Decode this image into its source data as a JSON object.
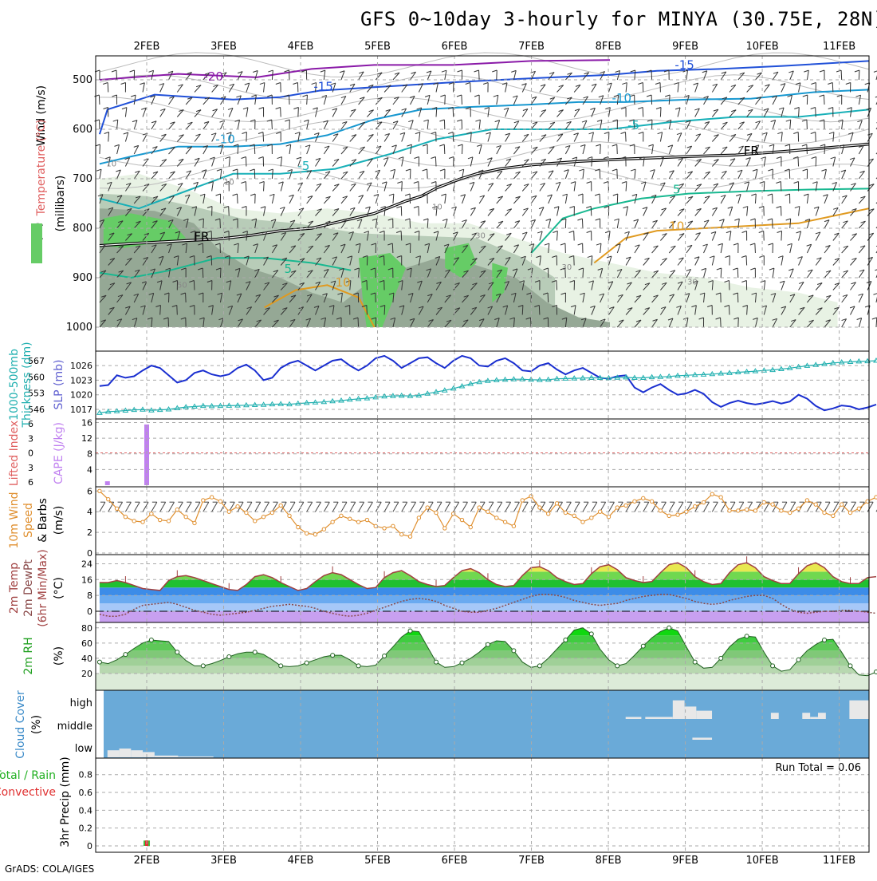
{
  "title": "GFS 0~10day 3-hourly for MINYA (30.75E, 28N)",
  "credit": "GrADS: COLA/IGES",
  "run_total_label": "Run Total = 0.06",
  "colors": {
    "grid": "#aaaaaa",
    "rh_green": "#66cc66",
    "rh_light": "#e8f2e4",
    "rh_mid": "#b8ccb8",
    "rh_dark": "#95a895",
    "slp": "#1a2fd0",
    "thickness": "#22b0b0",
    "cape": "#c080f0",
    "li": "#e06060",
    "wind": "#e09030",
    "temp_line": "#a04040",
    "dewpt": "#8a4a4a",
    "cloud": "#6aaad8",
    "precip_green": "#40c040",
    "precip_red": "#e03030"
  },
  "chart_data": [
    {
      "type": "contour",
      "panel": "upper-air",
      "ylabel": [
        "Wind (m/s)",
        "Temperature (°C)",
        "RH (%)",
        "(millibars)"
      ],
      "x_ticks": [
        "2FEB",
        "3FEB",
        "4FEB",
        "5FEB",
        "6FEB",
        "7FEB",
        "8FEB",
        "9FEB",
        "10FEB",
        "11FEB"
      ],
      "y_ticks": [
        500,
        600,
        700,
        800,
        900,
        1000
      ],
      "contour_labels": [
        {
          "text": "-20",
          "day": 2.95,
          "p": 502
        },
        {
          "text": "-15",
          "day": 4.35,
          "p": 522
        },
        {
          "text": "-15",
          "day": 8.95,
          "p": 478
        },
        {
          "text": "-10",
          "day": 3.1,
          "p": 628
        },
        {
          "text": "-10",
          "day": 8.15,
          "p": 545
        },
        {
          "text": "-5",
          "day": 4.1,
          "p": 682
        },
        {
          "text": "-5",
          "day": 8.3,
          "p": 600
        },
        {
          "text": "5",
          "day": 8.85,
          "p": 730
        },
        {
          "text": "10",
          "day": 8.85,
          "p": 804
        },
        {
          "text": "10",
          "day": 4.6,
          "p": 918
        },
        {
          "text": "5",
          "day": 3.9,
          "p": 890
        },
        {
          "text": "FR",
          "day": 2.8,
          "p": 825
        },
        {
          "text": "FR",
          "day": 9.8,
          "p": 652
        },
        {
          "text": "10",
          "day": 1.65,
          "p": 675
        },
        {
          "text": "10",
          "day": 3.15,
          "p": 712
        },
        {
          "text": "10",
          "day": 5.8,
          "p": 762
        },
        {
          "text": "30",
          "day": 6.35,
          "p": 820
        },
        {
          "text": "30",
          "day": 7.45,
          "p": 884
        },
        {
          "text": "30",
          "day": 9.05,
          "p": 914
        },
        {
          "text": "50",
          "day": 2.55,
          "p": 920
        }
      ]
    },
    {
      "type": "line",
      "panel": "slp-thickness",
      "ylabel": [
        "1000-500mb",
        "Thickness (dm)",
        "SLP (mb)"
      ],
      "y_ticks_thickness": [
        546,
        553,
        560,
        567
      ],
      "y_ticks_slp": [
        1017,
        1020,
        1023,
        1026
      ],
      "series": [
        {
          "name": "SLP (mb)",
          "values": [
            1021.8,
            1022,
            1024,
            1023.5,
            1023.8,
            1025,
            1026,
            1025.5,
            1024,
            1022.5,
            1023,
            1024.5,
            1025,
            1024.2,
            1023.8,
            1024.2,
            1025.5,
            1026.2,
            1025,
            1023,
            1023.5,
            1025.5,
            1026.5,
            1027,
            1026,
            1025,
            1026,
            1027,
            1027.3,
            1026,
            1025,
            1026,
            1027.5,
            1028,
            1027,
            1025.5,
            1026.5,
            1027.5,
            1027.7,
            1026.5,
            1025.5,
            1027,
            1028,
            1027.5,
            1026,
            1025.8,
            1027,
            1027.5,
            1026.5,
            1025,
            1024.8,
            1026,
            1026.5,
            1025.2,
            1024.2,
            1025,
            1025.5,
            1024.5,
            1023.5,
            1023.3,
            1023.8,
            1024,
            1021.5,
            1020.5,
            1021.5,
            1022.2,
            1021,
            1020,
            1020.3,
            1021,
            1020.2,
            1018.5,
            1017.5,
            1018.3,
            1018.8,
            1018.3,
            1018,
            1018.3,
            1018.7,
            1018.2,
            1018.6,
            1020,
            1019.2,
            1017.7,
            1016.8,
            1017.2,
            1017.8,
            1017.6,
            1017,
            1017.4,
            1018
          ]
        },
        {
          "name": "1000-500mb Thickness (dm)",
          "values": [
            544.5,
            545,
            545.2,
            545.5,
            545.8,
            545.9,
            545.6,
            545.8,
            546,
            546.5,
            547,
            547.2,
            547.5,
            547.4,
            547.5,
            547.6,
            547.7,
            547.8,
            547.9,
            548,
            548.2,
            548.3,
            548.2,
            548.5,
            548.8,
            549,
            549.2,
            549.5,
            549.8,
            550.2,
            550.5,
            550.8,
            551.2,
            551.6,
            551.8,
            551.9,
            551.8,
            552,
            552.8,
            553.5,
            554.2,
            555,
            556,
            557,
            557.8,
            558.3,
            558.6,
            558.8,
            559,
            559,
            558.8,
            558.7,
            558.8,
            559.2,
            559.3,
            559.4,
            559.5,
            559.6,
            559.6,
            559.5,
            559.7,
            559.8,
            559.6,
            559.6,
            559.9,
            560,
            560.2,
            560.5,
            560.7,
            560.9,
            561,
            561.2,
            561.5,
            561.7,
            562,
            562.2,
            562.5,
            562.8,
            563,
            563.4,
            563.8,
            564.3,
            564.8,
            565.2,
            565.6,
            566,
            566.3,
            566.5,
            566.7,
            566.8,
            567
          ]
        }
      ]
    },
    {
      "type": "bar",
      "panel": "cape-li",
      "ylabel": [
        "Lifted Index",
        "CAPE (J/kg)"
      ],
      "y_ticks_li": [
        -6,
        -3,
        0,
        3,
        6
      ],
      "y_ticks_cape": [
        4,
        8,
        12,
        16
      ],
      "bars": [
        {
          "day": 1.6,
          "value": 1
        },
        {
          "day": 2.1,
          "value": 15.5
        }
      ]
    },
    {
      "type": "line",
      "panel": "wind10m",
      "ylabel": [
        "10m Wind",
        "Speed",
        "& Barbs",
        "(m/s)"
      ],
      "y_ticks": [
        0,
        2,
        4,
        6
      ],
      "series": [
        {
          "name": "Speed",
          "values": [
            6,
            5.2,
            4.3,
            3.5,
            3.1,
            3.0,
            3.8,
            3.2,
            3.1,
            4.2,
            3.5,
            2.9,
            5.1,
            5.4,
            5.0,
            4.0,
            4.5,
            3.9,
            3.1,
            3.5,
            3.9,
            4.6,
            3.6,
            2.5,
            1.9,
            1.8,
            2.3,
            3.0,
            3.6,
            3.3,
            3.0,
            3.2,
            2.6,
            2.4,
            2.6,
            1.8,
            1.6,
            3.4,
            4.4,
            3.9,
            2.4,
            3.8,
            3.2,
            2.5,
            4.4,
            4.0,
            3.4,
            3.0,
            2.6,
            5.1,
            5.5,
            4.4,
            3.8,
            4.8,
            3.9,
            3.6,
            3.0,
            3.4,
            4.0,
            3.5,
            4.4,
            4.6,
            5.0,
            5.3,
            5.0,
            4.1,
            3.6,
            3.7,
            4.0,
            4.5,
            4.9,
            5.7,
            5.4,
            4.1,
            4.1,
            4.2,
            4.1,
            4.9,
            4.7,
            4.1,
            3.9,
            4.3,
            5.1,
            4.7,
            3.9,
            3.6,
            4.7,
            3.9,
            4.3,
            5.0,
            5.4
          ]
        }
      ]
    },
    {
      "type": "area",
      "panel": "temp",
      "ylabel": [
        "2m Temp",
        "2m DewPt",
        "(6hr Min/Max)",
        "(°C)"
      ],
      "y_ticks": [
        0,
        8,
        16,
        24
      ],
      "series": [
        {
          "name": "2m Temp",
          "values": [
            14.5,
            14.5,
            15.5,
            14.5,
            13.0,
            11.5,
            11.0,
            10.5,
            15.5,
            17.5,
            18.0,
            17.0,
            15.5,
            14.0,
            12.5,
            11.0,
            10.5,
            13.5,
            17.5,
            18.5,
            17.0,
            14.5,
            12.5,
            10.5,
            11.5,
            15.0,
            18.0,
            19.5,
            18.5,
            16.0,
            13.5,
            11.5,
            12.0,
            17.0,
            19.5,
            20.5,
            18.0,
            15.0,
            13.5,
            12.5,
            13.0,
            17.0,
            20.5,
            21.5,
            19.5,
            16.0,
            13.5,
            12.5,
            13.0,
            18.0,
            22.0,
            22.5,
            20.5,
            17.0,
            15.0,
            13.5,
            14.0,
            19.0,
            22.5,
            23.5,
            21.0,
            17.0,
            15.5,
            14.5,
            15.0,
            19.5,
            23.5,
            24.5,
            22.0,
            17.5,
            15.0,
            13.5,
            14.0,
            19.5,
            23.5,
            24.5,
            22.0,
            17.5,
            15.5,
            14.0,
            14.0,
            19.0,
            23.0,
            24.5,
            22.0,
            17.5,
            15.0,
            14.0,
            14.0,
            17.0,
            17.5
          ]
        },
        {
          "name": "2m DewPt",
          "values": [
            -1.5,
            -2.5,
            -2.5,
            -1.5,
            1.0,
            3.0,
            3.5,
            4.0,
            4.5,
            3.5,
            2.0,
            0.5,
            -0.5,
            -1.5,
            -2.0,
            -1.5,
            -1.0,
            -0.5,
            0.5,
            1.5,
            2.5,
            3.0,
            3.5,
            3.0,
            2.5,
            1.5,
            0.0,
            -1.0,
            -2.0,
            -2.5,
            -2.0,
            -1.0,
            0.5,
            2.0,
            3.5,
            5.0,
            6.0,
            6.5,
            6.0,
            5.0,
            3.0,
            1.5,
            0.0,
            -0.5,
            -0.5,
            0.5,
            1.5,
            3.0,
            4.5,
            6.0,
            7.5,
            8.5,
            8.5,
            8.0,
            7.0,
            5.5,
            4.5,
            3.5,
            3.0,
            3.5,
            4.0,
            5.5,
            6.5,
            7.5,
            8.0,
            8.5,
            8.5,
            7.5,
            6.5,
            5.0,
            4.0,
            3.5,
            4.0,
            5.5,
            6.5,
            7.5,
            8.0,
            8.0,
            6.5,
            3.5,
            1.0,
            -0.5,
            -1.0,
            -0.5,
            0.0,
            0.0,
            0.5,
            0.5,
            0.0,
            -0.5,
            -1.0
          ]
        }
      ]
    },
    {
      "type": "area",
      "panel": "rh2m",
      "ylabel": [
        "2m RH",
        "(%)"
      ],
      "y_ticks": [
        20,
        40,
        60,
        80
      ],
      "series": [
        {
          "name": "2m RH",
          "values": [
            35,
            33,
            38,
            45,
            53,
            60,
            64,
            63,
            62,
            48,
            37,
            30,
            30,
            33,
            37,
            42,
            46,
            48,
            48,
            45,
            38,
            30,
            29,
            30,
            34,
            38,
            42,
            44,
            44,
            38,
            30,
            29,
            31,
            43,
            55,
            68,
            76,
            75,
            55,
            35,
            28,
            29,
            34,
            40,
            48,
            58,
            63,
            62,
            50,
            35,
            28,
            30,
            40,
            52,
            64,
            77,
            80,
            72,
            52,
            38,
            30,
            33,
            44,
            56,
            67,
            75,
            80,
            76,
            55,
            35,
            27,
            28,
            40,
            55,
            65,
            69,
            68,
            48,
            30,
            23,
            25,
            38,
            50,
            58,
            64,
            65,
            48,
            30,
            18,
            17,
            22,
            30,
            35,
            36,
            36
          ]
        }
      ]
    },
    {
      "type": "heatmap",
      "panel": "cloud",
      "ylabel": [
        "Cloud Cover",
        "(%)"
      ],
      "y_ticks": [
        "high",
        "middle",
        "low"
      ],
      "low_clouds": [
        {
          "from": 1.6,
          "to": 1.75,
          "value": 40
        },
        {
          "from": 1.75,
          "to": 1.9,
          "value": 50
        },
        {
          "from": 1.9,
          "to": 2.05,
          "value": 40
        },
        {
          "from": 2.05,
          "to": 2.2,
          "value": 30
        },
        {
          "from": 2.2,
          "to": 2.5,
          "value": 10
        },
        {
          "from": 2.5,
          "to": 2.95,
          "value": 5
        }
      ],
      "mid_clouds": [
        {
          "from": 9.05,
          "to": 9.3,
          "value": 10
        }
      ],
      "high_clouds": [
        {
          "from": 8.2,
          "to": 8.4,
          "value": 10
        },
        {
          "from": 8.45,
          "to": 8.8,
          "value": 10
        },
        {
          "from": 8.8,
          "to": 8.95,
          "value": 90
        },
        {
          "from": 8.95,
          "to": 9.1,
          "value": 60
        },
        {
          "from": 9.1,
          "to": 9.3,
          "value": 40
        },
        {
          "from": 10.05,
          "to": 10.15,
          "value": 30
        },
        {
          "from": 10.45,
          "to": 10.55,
          "value": 30
        },
        {
          "from": 10.55,
          "to": 10.65,
          "value": 10
        },
        {
          "from": 10.65,
          "to": 10.75,
          "value": 30
        },
        {
          "from": 11.05,
          "to": 11.3,
          "value": 90
        }
      ]
    },
    {
      "type": "bar",
      "panel": "precip",
      "ylabel": [
        "Total / Rain",
        "Convective",
        "3hr Precip (mm)"
      ],
      "y_ticks": [
        0,
        0.2,
        0.4,
        0.6,
        0.8
      ],
      "bars": [
        {
          "day": 2.1,
          "total": 0.06,
          "convective": 0.06
        }
      ]
    }
  ]
}
